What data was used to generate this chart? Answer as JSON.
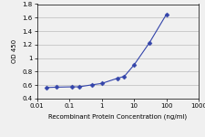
{
  "x": [
    0.02,
    0.04,
    0.12,
    0.2,
    0.5,
    1,
    3,
    5,
    10,
    30,
    100
  ],
  "y": [
    0.565,
    0.57,
    0.575,
    0.575,
    0.605,
    0.625,
    0.7,
    0.73,
    0.9,
    1.23,
    1.65
  ],
  "line_color": "#3344aa",
  "marker": "D",
  "marker_size": 2.5,
  "marker_facecolor": "#3344aa",
  "xlabel": "Recombinant Protein Concentration (ng/ml)",
  "ylabel": "OD 450",
  "xlim": [
    0.01,
    1000
  ],
  "ylim": [
    0.4,
    1.8
  ],
  "yticks": [
    0.4,
    0.6,
    0.8,
    1.0,
    1.2,
    1.4,
    1.6,
    1.8
  ],
  "ytick_labels": [
    "0.4",
    "0.6",
    "0.8",
    "1",
    "1.2",
    "1.4",
    "1.6",
    "1.8"
  ],
  "xticks": [
    0.01,
    0.1,
    1,
    10,
    100,
    1000
  ],
  "xtick_labels": [
    "0.01",
    "0.1",
    "1",
    "10",
    "100",
    "1000"
  ],
  "xlabel_fontsize": 5.0,
  "ylabel_fontsize": 5.0,
  "tick_fontsize": 5.0,
  "background_color": "#f0f0f0",
  "plot_bg_color": "#f0f0f0",
  "grid_color": "#bbbbbb",
  "line_width": 0.8
}
